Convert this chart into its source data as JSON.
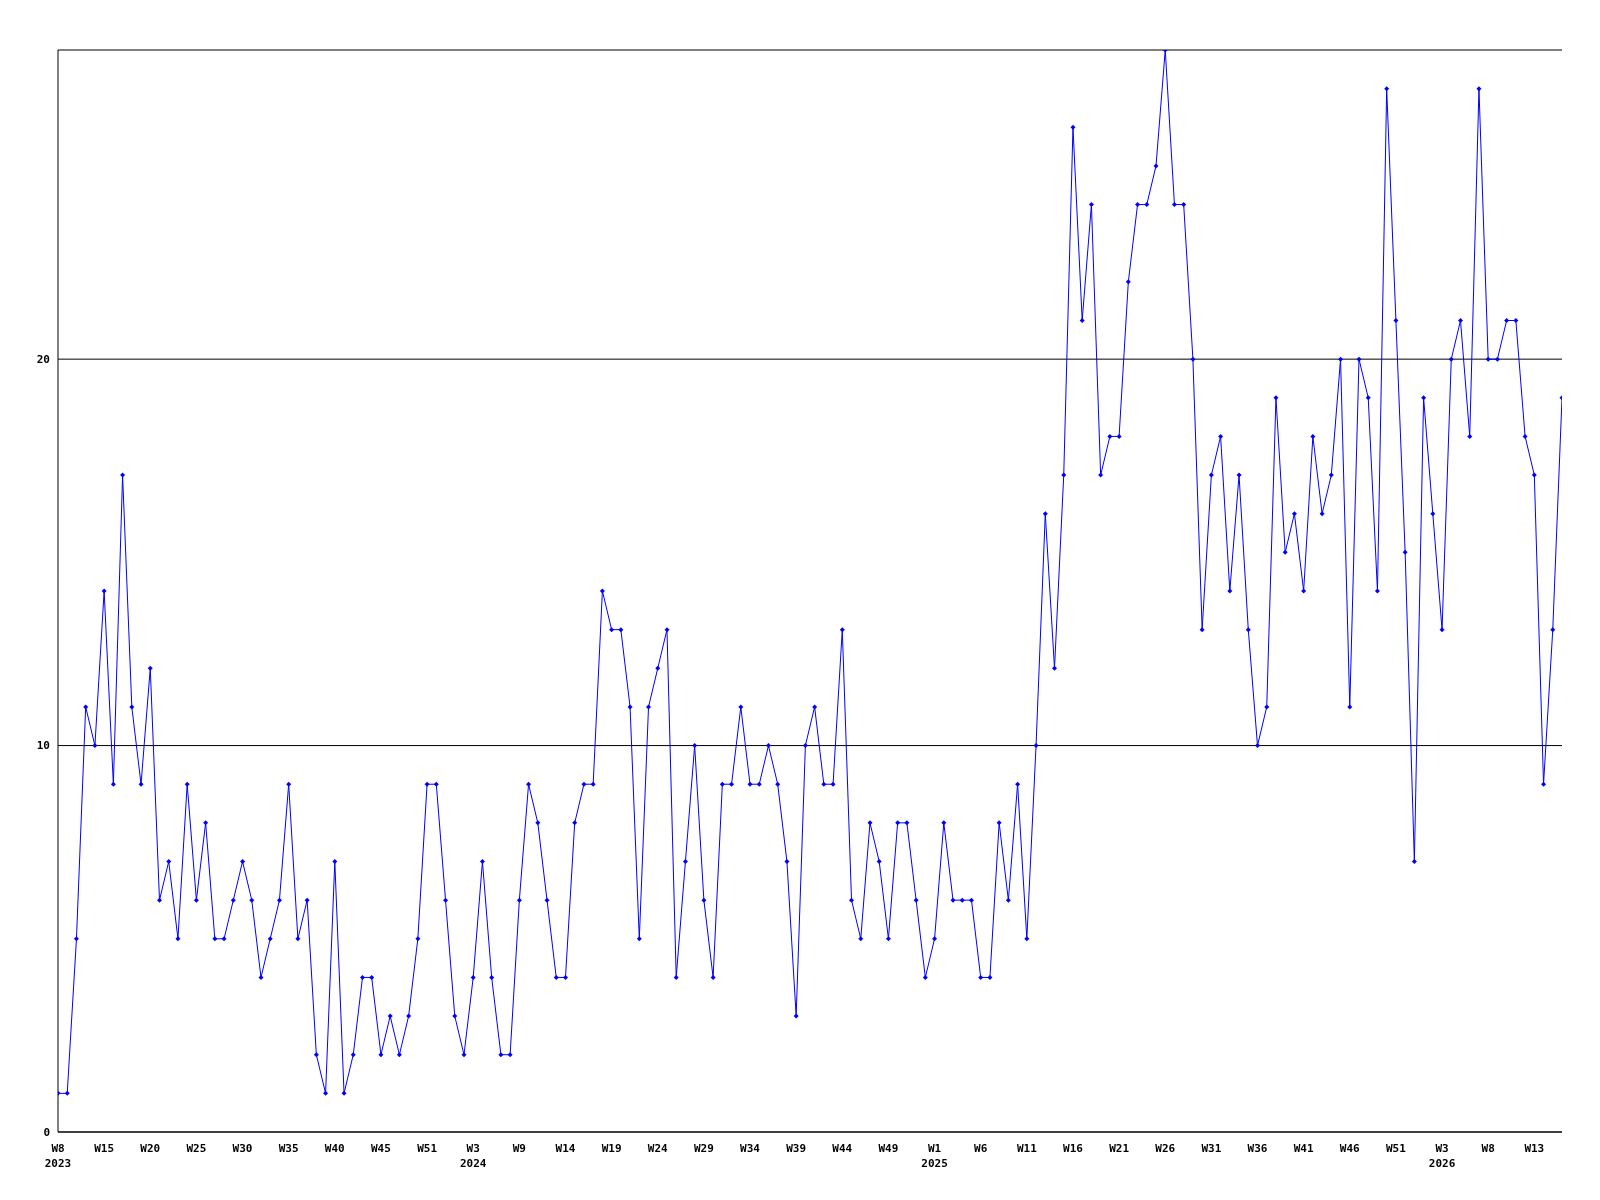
{
  "chart_data": {
    "type": "line",
    "categories": [
      "W8\n2023",
      null,
      null,
      null,
      null,
      "W15",
      null,
      null,
      null,
      null,
      "W20",
      null,
      null,
      null,
      null,
      "W25",
      null,
      null,
      null,
      null,
      "W30",
      null,
      null,
      null,
      null,
      "W35",
      null,
      null,
      null,
      null,
      "W40",
      null,
      null,
      null,
      null,
      "W45",
      null,
      null,
      null,
      null,
      "W51",
      null,
      null,
      null,
      null,
      "W3\n2024",
      null,
      null,
      null,
      null,
      "W9",
      null,
      null,
      null,
      null,
      "W14",
      null,
      null,
      null,
      null,
      "W19",
      null,
      null,
      null,
      null,
      "W24",
      null,
      null,
      null,
      null,
      "W29",
      null,
      null,
      null,
      null,
      "W34",
      null,
      null,
      null,
      null,
      "W39",
      null,
      null,
      null,
      null,
      "W44",
      null,
      null,
      null,
      null,
      "W49",
      null,
      null,
      null,
      null,
      "W1\n2025",
      null,
      null,
      null,
      null,
      "W6",
      null,
      null,
      null,
      null,
      "W11",
      null,
      null,
      null,
      null,
      "W16",
      null,
      null,
      null,
      null,
      "W21",
      null,
      null,
      null,
      null,
      "W26",
      null,
      null,
      null,
      null,
      "W31",
      null,
      null,
      null,
      null,
      "W36",
      null,
      null,
      null,
      null,
      "W41",
      null,
      null,
      null,
      null,
      "W46",
      null,
      null,
      null,
      null,
      "W51",
      null,
      null,
      null,
      null,
      "W3\n2026",
      null,
      null,
      null,
      null,
      "W8",
      null,
      null,
      null,
      null,
      "W13",
      null,
      null,
      null
    ],
    "series": [
      {
        "color": "#0000ff",
        "values": [
          1,
          1,
          5,
          11,
          10,
          14,
          9,
          17,
          11,
          9,
          12,
          6,
          7,
          5,
          9,
          6,
          8,
          5,
          5,
          6,
          7,
          6,
          4,
          5,
          6,
          9,
          5,
          6,
          2,
          1,
          7,
          1,
          2,
          4,
          4,
          2,
          3,
          2,
          3,
          5,
          9,
          9,
          6,
          3,
          2,
          4,
          7,
          4,
          2,
          2,
          6,
          9,
          8,
          6,
          4,
          4,
          8,
          9,
          9,
          14,
          13,
          13,
          11,
          5,
          11,
          12,
          13,
          4,
          7,
          10,
          6,
          4,
          9,
          9,
          11,
          9,
          9,
          10,
          9,
          7,
          3,
          10,
          11,
          9,
          9,
          13,
          6,
          5,
          8,
          7,
          5,
          8,
          8,
          6,
          4,
          5,
          8,
          6,
          6,
          6,
          4,
          4,
          8,
          6,
          9,
          5,
          10,
          16,
          12,
          17,
          26,
          21,
          24,
          17,
          18,
          18,
          22,
          24,
          24,
          25,
          28,
          24,
          24,
          20,
          13,
          17,
          18,
          14,
          17,
          13,
          10,
          11,
          19,
          15,
          16,
          14,
          18,
          16,
          17,
          20,
          11,
          20,
          19,
          14,
          27,
          21,
          15,
          7,
          19,
          16,
          13,
          20,
          21,
          18,
          27,
          20,
          20,
          21,
          21,
          18,
          17,
          9,
          13,
          19
        ]
      }
    ],
    "ylim": [
      0,
      28
    ],
    "yticks": [
      0,
      10,
      20
    ],
    "grid": "y",
    "marker": "diamond",
    "line_style": "solid"
  }
}
